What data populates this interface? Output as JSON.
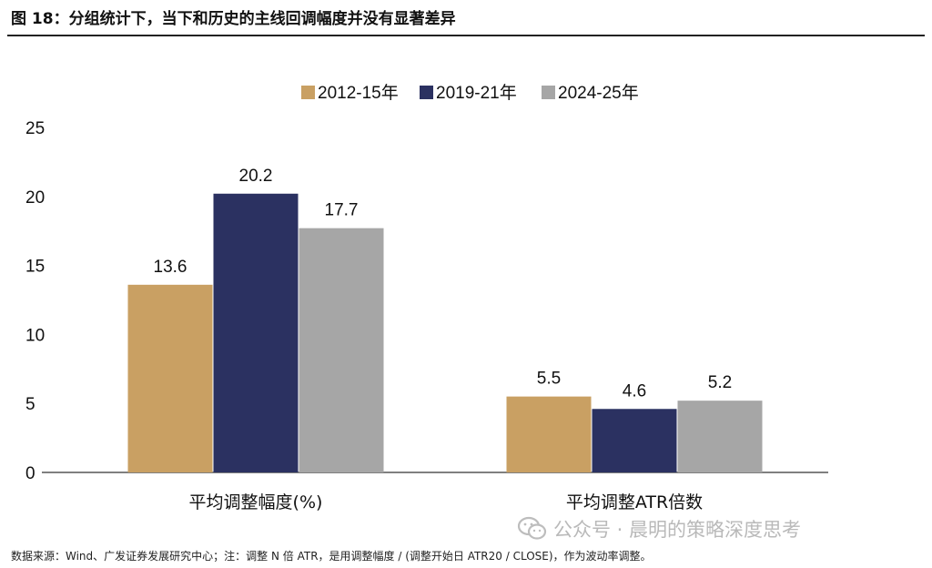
{
  "figure": {
    "title": "图 18：分组统计下，当下和历史的主线回调幅度并没有显著差异",
    "source": "数据来源：Wind、广发证券发展研究中心；注：调整 N 倍 ATR，是用调整幅度  / (调整开始日 ATR20 / CLOSE)，作为波动率调整。",
    "watermark": "公众号 · 晨明的策略深度思考",
    "watermark_icon": "wechat-icon"
  },
  "chart_data": {
    "type": "bar",
    "categories": [
      "平均调整幅度(%)",
      "平均调整ATR倍数"
    ],
    "series": [
      {
        "name": "2012-15年",
        "values": [
          13.6,
          5.5
        ],
        "color": "#C9A063"
      },
      {
        "name": "2019-21年",
        "values": [
          20.2,
          4.6
        ],
        "color": "#2B3161"
      },
      {
        "name": "2024-25年",
        "values": [
          17.7,
          5.2
        ],
        "color": "#A6A6A6"
      }
    ],
    "ylim": [
      0,
      25
    ],
    "yticks": [
      "0",
      "5",
      "10",
      "15",
      "20",
      "25"
    ],
    "data_labels": [
      [
        "13.6",
        "5.5"
      ],
      [
        "20.2",
        "4.6"
      ],
      [
        "17.7",
        "5.2"
      ]
    ],
    "legend_position": "top-center",
    "grid": false
  }
}
